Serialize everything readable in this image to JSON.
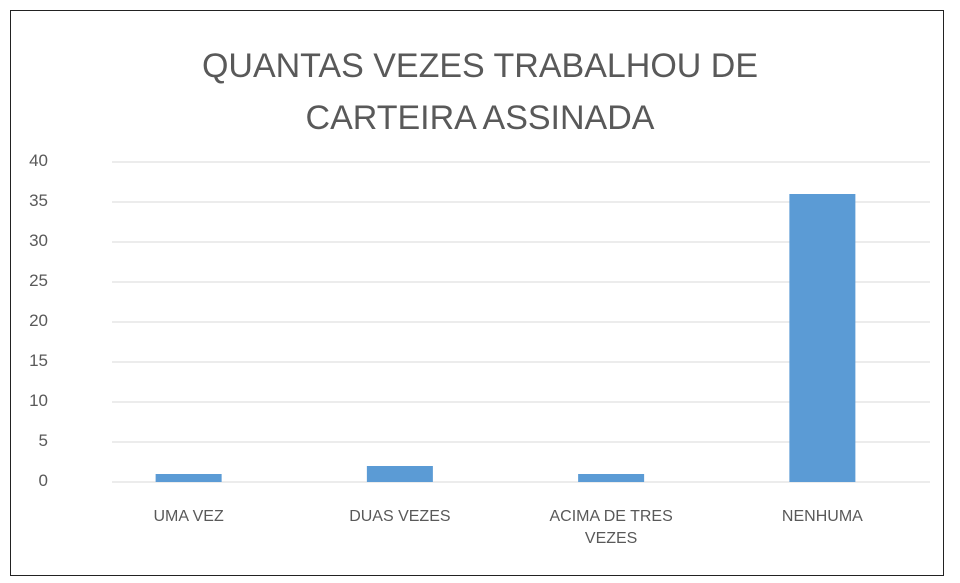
{
  "chart_data": {
    "type": "bar",
    "title": "QUANTAS VEZES TRABALHOU DE CARTEIRA ASSINADA",
    "categories": [
      "UMA VEZ",
      "DUAS VEZES",
      "ACIMA DE TRES VEZES",
      "NENHUMA"
    ],
    "values": [
      1,
      2,
      1,
      36
    ],
    "color": "#5b9bd5",
    "ylim": [
      0,
      40
    ],
    "yticks": [
      0,
      5,
      10,
      15,
      20,
      25,
      30,
      35,
      40
    ],
    "grid": true
  }
}
